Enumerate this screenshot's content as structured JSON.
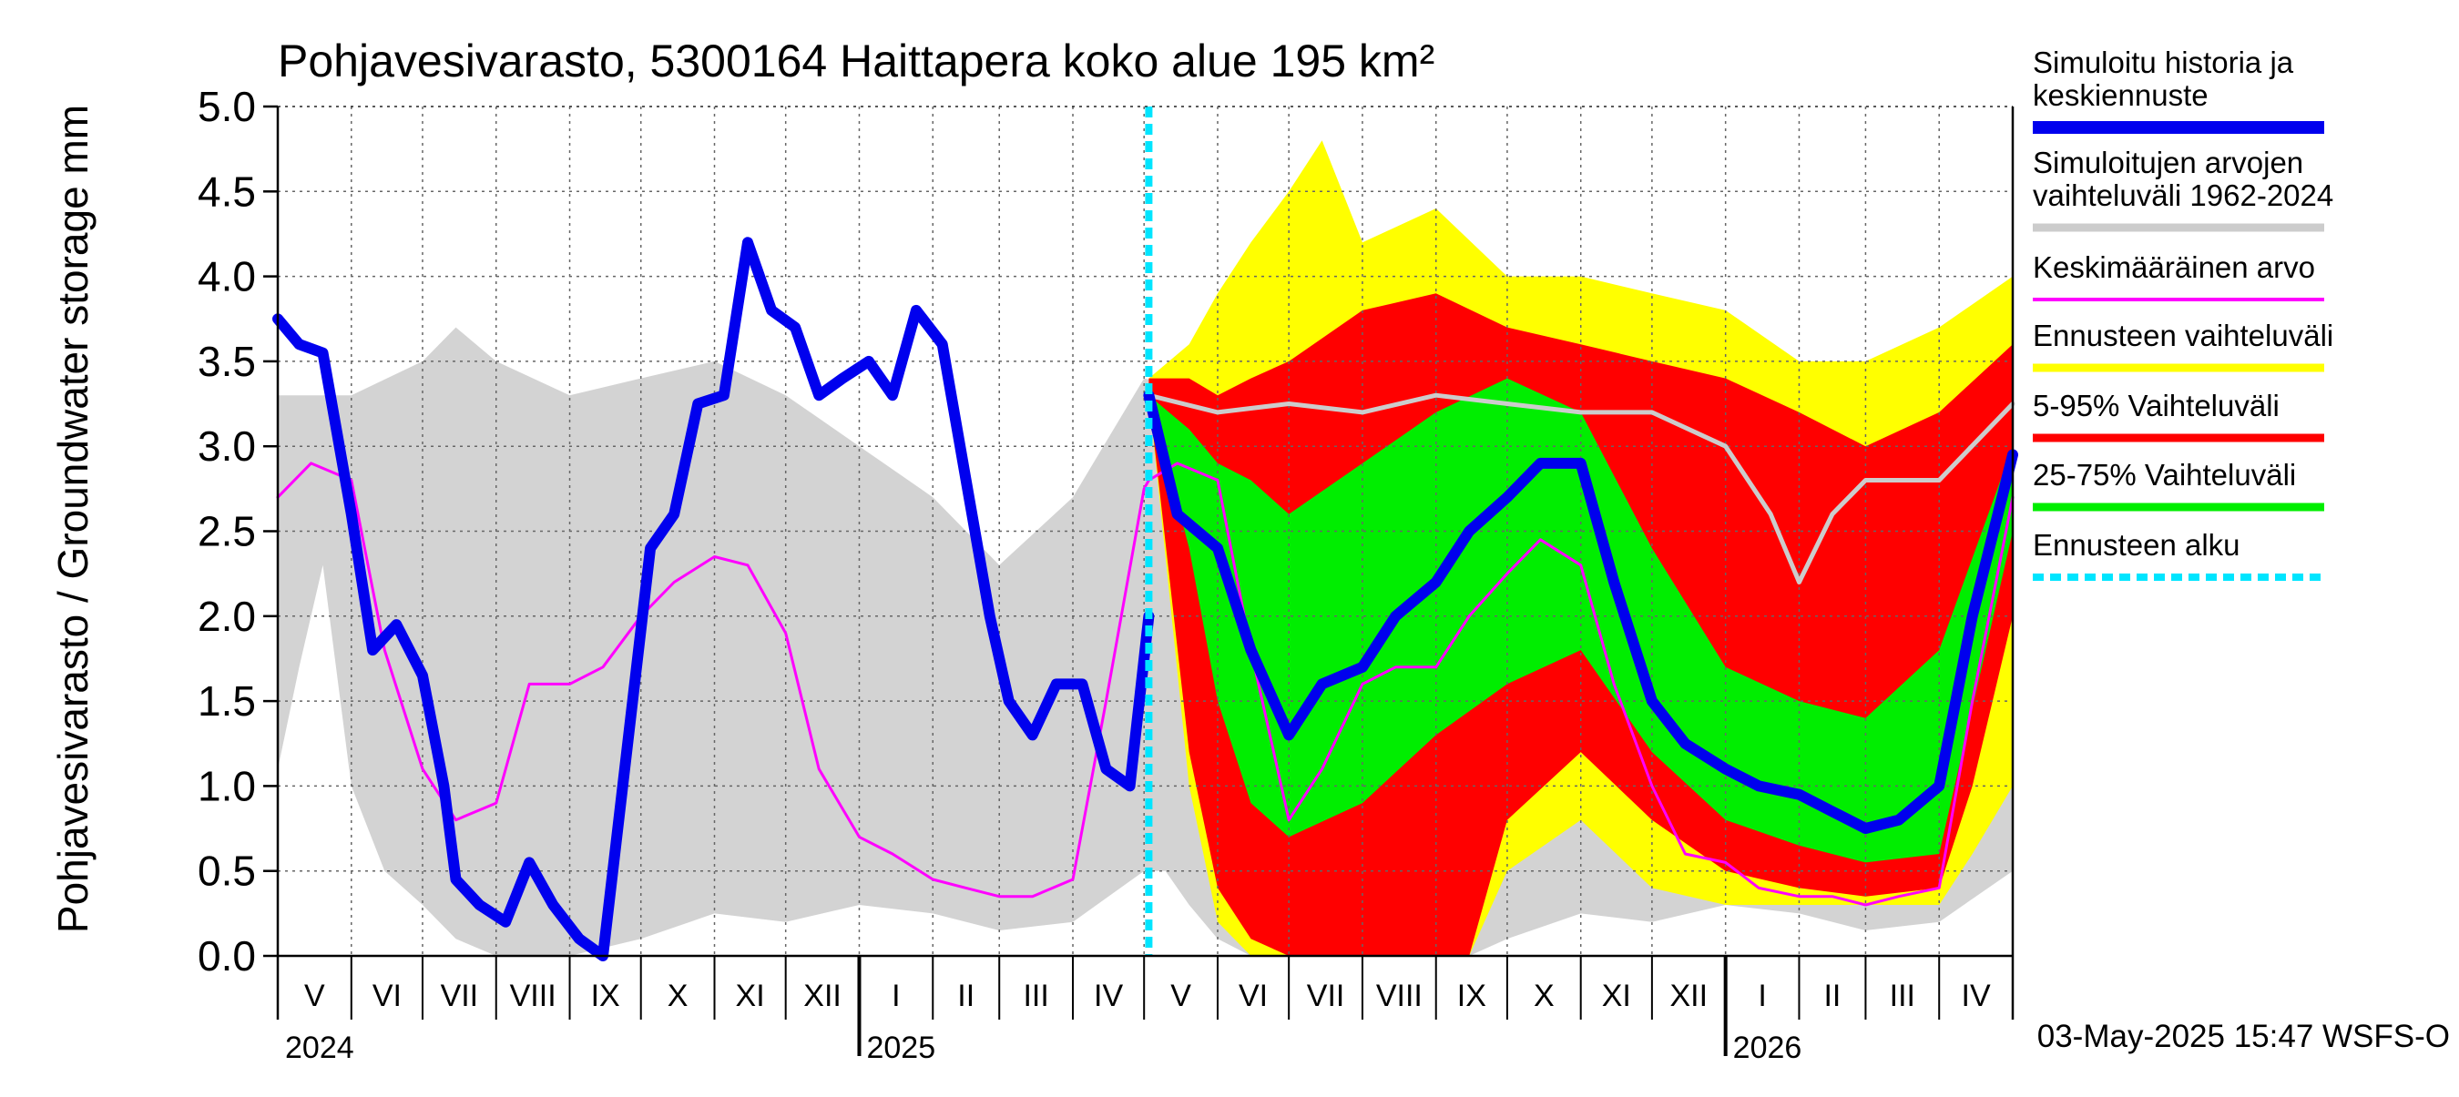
{
  "chart_data": {
    "type": "area",
    "title": "Pohjavesivarasto, 5300164 Haittapera koko alue 195 km²",
    "ylabel": "Pohjavesivarasto / Groundwater storage   mm",
    "ylim": [
      0,
      5.0
    ],
    "yticks": [
      "0.0",
      "0.5",
      "1.0",
      "1.5",
      "2.0",
      "2.5",
      "3.0",
      "3.5",
      "4.0",
      "4.5",
      "5.0"
    ],
    "x_range": [
      "2024-05-01",
      "2026-05-02"
    ],
    "forecast_start": "2025-05-03",
    "grid": true,
    "month_labels": [
      {
        "label": "V",
        "start": "2024-05-01"
      },
      {
        "label": "VI",
        "start": "2024-06-01"
      },
      {
        "label": "VII",
        "start": "2024-07-01"
      },
      {
        "label": "VIII",
        "start": "2024-08-01"
      },
      {
        "label": "IX",
        "start": "2024-09-01"
      },
      {
        "label": "X",
        "start": "2024-10-01"
      },
      {
        "label": "XI",
        "start": "2024-11-01"
      },
      {
        "label": "XII",
        "start": "2024-12-01"
      },
      {
        "label": "I",
        "start": "2025-01-01"
      },
      {
        "label": "II",
        "start": "2025-02-01"
      },
      {
        "label": "III",
        "start": "2025-03-01"
      },
      {
        "label": "IV",
        "start": "2025-04-01"
      },
      {
        "label": "V",
        "start": "2025-05-01"
      },
      {
        "label": "VI",
        "start": "2025-06-01"
      },
      {
        "label": "VII",
        "start": "2025-07-01"
      },
      {
        "label": "VIII",
        "start": "2025-08-01"
      },
      {
        "label": "IX",
        "start": "2025-09-01"
      },
      {
        "label": "X",
        "start": "2025-10-01"
      },
      {
        "label": "XI",
        "start": "2025-11-01"
      },
      {
        "label": "XII",
        "start": "2025-12-01"
      },
      {
        "label": "I",
        "start": "2026-01-01"
      },
      {
        "label": "II",
        "start": "2026-02-01"
      },
      {
        "label": "III",
        "start": "2026-03-01"
      },
      {
        "label": "IV",
        "start": "2026-04-01"
      }
    ],
    "year_labels": [
      {
        "label": "2024",
        "date": "2024-05-01"
      },
      {
        "label": "2025",
        "date": "2025-01-01"
      },
      {
        "label": "2026",
        "date": "2026-01-01"
      }
    ],
    "legend": [
      {
        "label": "Simuloitu historia ja keskiennuste",
        "color": "#0000ee",
        "style": "thick-line"
      },
      {
        "label": "Simuloitujen arvojen vaihteluväli 1962-2024",
        "color": "#cccccc",
        "style": "line"
      },
      {
        "label": "Keskimääräinen arvo",
        "color": "#ff00ff",
        "style": "thin-line"
      },
      {
        "label": "Ennusteen vaihteluväli",
        "color": "#ffff00",
        "style": "line"
      },
      {
        "label": "5-95% Vaihteluväli",
        "color": "#ff0000",
        "style": "line"
      },
      {
        "label": "25-75% Vaihteluväli",
        "color": "#00ee00",
        "style": "line"
      },
      {
        "label": "Ennusteen alku",
        "color": "#00e5ff",
        "style": "dashed"
      }
    ],
    "footer": "03-May-2025 15:47 WSFS-O",
    "series": {
      "hist_range_min": {
        "x": [
          "2024-05-01",
          "2024-05-10",
          "2024-05-20",
          "2024-06-01",
          "2024-06-15",
          "2024-07-01",
          "2024-07-15",
          "2024-08-01",
          "2024-08-15",
          "2024-09-01",
          "2024-10-01",
          "2024-11-01",
          "2024-12-01",
          "2025-01-01",
          "2025-02-01",
          "2025-03-01",
          "2025-04-01",
          "2025-05-01",
          "2025-05-10",
          "2025-05-20",
          "2025-06-01",
          "2025-06-15",
          "2025-07-01",
          "2025-07-15",
          "2025-08-01",
          "2025-08-15",
          "2025-09-01",
          "2025-09-15",
          "2025-10-01",
          "2025-11-01",
          "2025-12-01",
          "2026-01-01",
          "2026-02-01",
          "2026-03-01",
          "2026-04-01",
          "2026-05-02"
        ],
        "y": [
          1.1,
          1.7,
          2.3,
          1.0,
          0.5,
          0.3,
          0.1,
          0.0,
          0.0,
          0.0,
          0.1,
          0.25,
          0.2,
          0.3,
          0.25,
          0.15,
          0.2,
          0.5,
          0.5,
          0.3,
          0.1,
          0.0,
          0.0,
          0.0,
          0.0,
          0.0,
          0.0,
          0.0,
          0.1,
          0.25,
          0.2,
          0.3,
          0.25,
          0.15,
          0.2,
          0.5
        ]
      },
      "hist_range_max": {
        "x": [
          "2024-05-01",
          "2024-06-01",
          "2024-07-01",
          "2024-07-15",
          "2024-08-01",
          "2024-09-01",
          "2024-10-01",
          "2024-11-01",
          "2024-12-01",
          "2025-01-01",
          "2025-02-01",
          "2025-03-01",
          "2025-04-01",
          "2025-05-01",
          "2025-06-01",
          "2025-07-01",
          "2025-07-15",
          "2025-08-01",
          "2025-09-01",
          "2025-10-01",
          "2025-11-01",
          "2025-12-01",
          "2026-01-01",
          "2026-02-01",
          "2026-03-01",
          "2026-04-01",
          "2026-05-02"
        ],
        "y": [
          3.3,
          3.3,
          3.5,
          3.7,
          3.5,
          3.3,
          3.4,
          3.5,
          3.3,
          3.0,
          2.7,
          2.3,
          2.7,
          3.4,
          3.3,
          3.5,
          3.7,
          3.5,
          3.3,
          3.4,
          3.5,
          3.3,
          3.0,
          2.7,
          2.3,
          2.7,
          3.3
        ]
      },
      "hist_range_fc_max": {
        "x": [
          "2025-05-03",
          "2025-06-01",
          "2025-07-01",
          "2025-08-01",
          "2025-09-01",
          "2025-10-01",
          "2025-11-01",
          "2025-12-01",
          "2026-01-01",
          "2026-01-20",
          "2026-02-01",
          "2026-02-15",
          "2026-03-01",
          "2026-04-01",
          "2026-05-02"
        ],
        "y": [
          3.3,
          3.2,
          3.25,
          3.2,
          3.3,
          3.25,
          3.2,
          3.2,
          3.0,
          2.6,
          2.2,
          2.6,
          2.8,
          2.8,
          3.25
        ]
      },
      "sim_mean": {
        "x": [
          "2024-05-01",
          "2024-05-10",
          "2024-05-20",
          "2024-06-01",
          "2024-06-10",
          "2024-06-20",
          "2024-07-01",
          "2024-07-10",
          "2024-07-15",
          "2024-07-25",
          "2024-08-05",
          "2024-08-15",
          "2024-08-25",
          "2024-09-05",
          "2024-09-15",
          "2024-09-25",
          "2024-10-05",
          "2024-10-15",
          "2024-10-25",
          "2024-11-05",
          "2024-11-15",
          "2024-11-25",
          "2024-12-05",
          "2024-12-15",
          "2024-12-25",
          "2025-01-05",
          "2025-01-15",
          "2025-01-25",
          "2025-02-05",
          "2025-02-15",
          "2025-02-25",
          "2025-03-05",
          "2025-03-15",
          "2025-03-25",
          "2025-04-05",
          "2025-04-15",
          "2025-04-25",
          "2025-05-03"
        ],
        "y": [
          3.75,
          3.6,
          3.55,
          2.6,
          1.8,
          1.95,
          1.65,
          1.0,
          0.45,
          0.3,
          0.2,
          0.55,
          0.3,
          0.1,
          0.0,
          1.2,
          2.4,
          2.6,
          3.25,
          3.3,
          4.2,
          3.8,
          3.7,
          3.3,
          3.4,
          3.5,
          3.3,
          3.8,
          3.6,
          2.8,
          2.0,
          1.5,
          1.3,
          1.6,
          1.6,
          1.1,
          1.0,
          2.0
        ]
      },
      "mean_hist": {
        "x": [
          "2024-05-01",
          "2024-05-15",
          "2024-06-01",
          "2024-06-15",
          "2024-07-01",
          "2024-07-15",
          "2024-08-01",
          "2024-08-15",
          "2024-09-01",
          "2024-09-15",
          "2024-10-01",
          "2024-10-15",
          "2024-11-01",
          "2024-11-15",
          "2024-12-01",
          "2024-12-15",
          "2025-01-01",
          "2025-01-15",
          "2025-02-01",
          "2025-02-15",
          "2025-03-01",
          "2025-03-15",
          "2025-04-01",
          "2025-04-15",
          "2025-05-01",
          "2025-05-03"
        ],
        "y": [
          2.7,
          2.9,
          2.8,
          1.8,
          1.1,
          0.8,
          0.9,
          1.6,
          1.6,
          1.7,
          2.0,
          2.2,
          2.35,
          2.3,
          1.9,
          1.1,
          0.7,
          0.6,
          0.45,
          0.4,
          0.35,
          0.35,
          0.45,
          1.5,
          2.75,
          2.8
        ]
      },
      "forecast_yellow_min": {
        "x": [
          "2025-05-03",
          "2025-05-20",
          "2025-06-01",
          "2025-06-15",
          "2025-07-01",
          "2025-08-01",
          "2025-09-01",
          "2025-09-15",
          "2025-10-01",
          "2025-11-01",
          "2025-12-01",
          "2026-01-01",
          "2026-02-01",
          "2026-03-01",
          "2026-04-01",
          "2026-04-15",
          "2026-05-02"
        ],
        "y": [
          3.3,
          1.0,
          0.2,
          0.0,
          0.0,
          0.0,
          0.0,
          0.0,
          0.5,
          0.8,
          0.4,
          0.3,
          0.3,
          0.3,
          0.3,
          0.6,
          1.0
        ]
      },
      "forecast_yellow_max": {
        "x": [
          "2025-05-03",
          "2025-05-20",
          "2025-06-01",
          "2025-06-15",
          "2025-07-01",
          "2025-07-15",
          "2025-08-01",
          "2025-09-01",
          "2025-10-01",
          "2025-11-01",
          "2025-12-01",
          "2026-01-01",
          "2026-02-01",
          "2026-03-01",
          "2026-04-01",
          "2026-05-02"
        ],
        "y": [
          3.4,
          3.6,
          3.9,
          4.2,
          4.5,
          4.8,
          4.2,
          4.4,
          4.0,
          4.0,
          3.9,
          3.8,
          3.5,
          3.5,
          3.7,
          4.0
        ]
      },
      "forecast_red_min": {
        "x": [
          "2025-05-03",
          "2025-05-20",
          "2025-06-01",
          "2025-06-15",
          "2025-07-01",
          "2025-08-01",
          "2025-09-01",
          "2025-09-15",
          "2025-10-01",
          "2025-11-01",
          "2025-12-01",
          "2026-01-01",
          "2026-02-01",
          "2026-03-01",
          "2026-04-01",
          "2026-04-15",
          "2026-05-02"
        ],
        "y": [
          3.3,
          1.2,
          0.4,
          0.1,
          0.0,
          0.0,
          0.0,
          0.0,
          0.8,
          1.2,
          0.8,
          0.5,
          0.4,
          0.35,
          0.4,
          1.0,
          2.0
        ]
      },
      "forecast_red_max": {
        "x": [
          "2025-05-03",
          "2025-05-20",
          "2025-06-01",
          "2025-06-15",
          "2025-07-01",
          "2025-08-01",
          "2025-09-01",
          "2025-10-01",
          "2025-11-01",
          "2025-12-01",
          "2026-01-01",
          "2026-02-01",
          "2026-03-01",
          "2026-04-01",
          "2026-05-02"
        ],
        "y": [
          3.4,
          3.4,
          3.3,
          3.4,
          3.5,
          3.8,
          3.9,
          3.7,
          3.6,
          3.5,
          3.4,
          3.2,
          3.0,
          3.2,
          3.6
        ]
      },
      "forecast_green_min": {
        "x": [
          "2025-05-03",
          "2025-05-20",
          "2025-06-01",
          "2025-06-15",
          "2025-07-01",
          "2025-08-01",
          "2025-09-01",
          "2025-10-01",
          "2025-11-01",
          "2025-12-01",
          "2026-01-01",
          "2026-02-01",
          "2026-03-01",
          "2026-04-01",
          "2026-05-02"
        ],
        "y": [
          3.3,
          2.4,
          1.5,
          0.9,
          0.7,
          0.9,
          1.3,
          1.6,
          1.8,
          1.2,
          0.8,
          0.65,
          0.55,
          0.6,
          2.5
        ]
      },
      "forecast_green_max": {
        "x": [
          "2025-05-03",
          "2025-05-20",
          "2025-06-01",
          "2025-06-15",
          "2025-07-01",
          "2025-08-01",
          "2025-09-01",
          "2025-10-01",
          "2025-11-01",
          "2025-12-01",
          "2026-01-01",
          "2026-02-01",
          "2026-03-01",
          "2026-04-01",
          "2026-05-02"
        ],
        "y": [
          3.3,
          3.1,
          2.9,
          2.8,
          2.6,
          2.9,
          3.2,
          3.4,
          3.2,
          2.4,
          1.7,
          1.5,
          1.4,
          1.8,
          3.0
        ]
      },
      "forecast_median": {
        "x": [
          "2025-05-03",
          "2025-05-15",
          "2025-06-01",
          "2025-06-15",
          "2025-07-01",
          "2025-07-15",
          "2025-08-01",
          "2025-08-15",
          "2025-09-01",
          "2025-09-15",
          "2025-10-01",
          "2025-10-15",
          "2025-11-01",
          "2025-11-15",
          "2025-12-01",
          "2025-12-15",
          "2026-01-01",
          "2026-01-15",
          "2026-02-01",
          "2026-02-15",
          "2026-03-01",
          "2026-03-15",
          "2026-04-01",
          "2026-04-15",
          "2026-05-02"
        ],
        "y": [
          3.3,
          2.6,
          2.4,
          1.8,
          1.3,
          1.6,
          1.7,
          2.0,
          2.2,
          2.5,
          2.7,
          2.9,
          2.9,
          2.2,
          1.5,
          1.25,
          1.1,
          1.0,
          0.95,
          0.85,
          0.75,
          0.8,
          1.0,
          2.0,
          2.95
        ]
      },
      "mean_fc": {
        "x": [
          "2025-05-03",
          "2025-05-15",
          "2025-06-01",
          "2025-06-15",
          "2025-07-01",
          "2025-07-15",
          "2025-08-01",
          "2025-08-15",
          "2025-09-01",
          "2025-09-15",
          "2025-10-01",
          "2025-10-15",
          "2025-11-01",
          "2025-11-15",
          "2025-12-01",
          "2025-12-15",
          "2026-01-01",
          "2026-01-15",
          "2026-02-01",
          "2026-02-15",
          "2026-03-01",
          "2026-03-15",
          "2026-04-01",
          "2026-04-15",
          "2026-05-02"
        ],
        "y": [
          2.8,
          2.9,
          2.8,
          1.8,
          0.8,
          1.1,
          1.6,
          1.7,
          1.7,
          2.0,
          2.25,
          2.45,
          2.3,
          1.6,
          1.0,
          0.6,
          0.55,
          0.4,
          0.35,
          0.35,
          0.3,
          0.35,
          0.4,
          1.5,
          2.7
        ]
      }
    }
  }
}
